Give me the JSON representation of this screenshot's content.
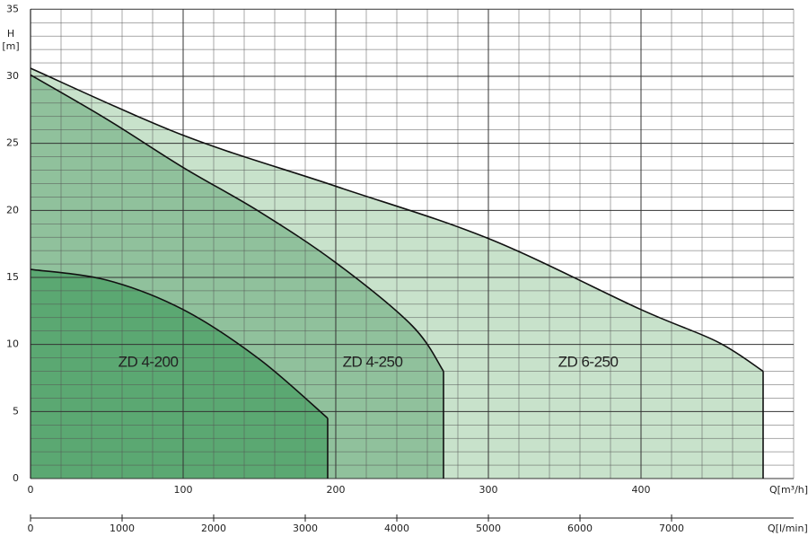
{
  "chart_data": {
    "type": "area",
    "y_label": "H",
    "y_unit": "[m]",
    "x_label": "Q[m³/h]",
    "x2_label": "Q[l/min]",
    "xlim": [
      0,
      500
    ],
    "xticks": [
      0,
      100,
      200,
      300,
      400
    ],
    "x_minor_ticks": [
      20,
      40,
      60,
      80,
      120,
      140,
      160,
      180,
      220,
      240,
      260,
      280,
      320,
      340,
      360,
      380,
      420,
      440,
      460,
      480,
      500
    ],
    "ylim": [
      0,
      35
    ],
    "yticks": [
      0,
      5,
      10,
      15,
      20,
      25,
      30,
      35
    ],
    "y_minor_ticks": [
      1,
      2,
      3,
      4,
      6,
      7,
      8,
      9,
      11,
      12,
      13,
      14,
      16,
      17,
      18,
      19,
      21,
      22,
      23,
      24,
      26,
      27,
      28,
      29,
      31,
      32,
      33,
      34
    ],
    "x2lim": [
      0,
      8333
    ],
    "x2ticks": [
      0,
      1000,
      2000,
      3000,
      4000,
      5000,
      6000,
      7000
    ],
    "grid": true,
    "series": [
      {
        "name": "ZD 6-250",
        "color": "#c8e2cb",
        "x": [
          0,
          100,
          200,
          300,
          400,
          450,
          480
        ],
        "values": [
          30.6,
          25.6,
          21.8,
          17.9,
          12.6,
          10.2,
          8.0
        ]
      },
      {
        "name": "ZD 4-250",
        "color": "#90c19c",
        "x": [
          0,
          50,
          100,
          150,
          200,
          250,
          270.6
        ],
        "values": [
          30.1,
          26.8,
          23.2,
          19.9,
          16.1,
          11.4,
          8.0
        ]
      },
      {
        "name": "ZD 4-200",
        "color": "#5ba872",
        "x": [
          0,
          50,
          100,
          150,
          194.7
        ],
        "values": [
          15.6,
          14.8,
          12.6,
          8.9,
          4.5
        ]
      }
    ]
  }
}
